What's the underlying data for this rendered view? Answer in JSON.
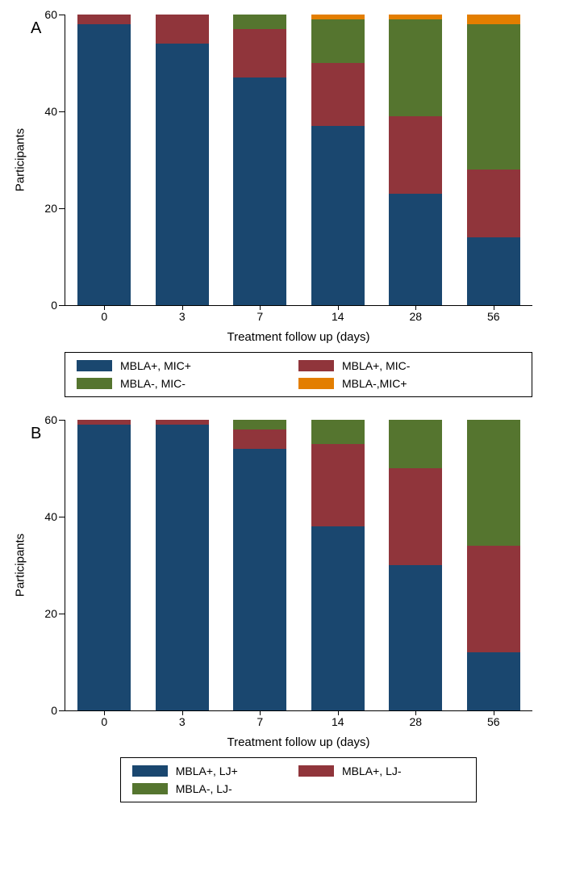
{
  "global": {
    "background_color": "#ffffff",
    "axis_color": "#000000",
    "text_color": "#000000",
    "font_family": "Arial",
    "label_fontsize": 14,
    "axis_title_fontsize": 15,
    "panel_label_fontsize": 20
  },
  "series_colors": {
    "blue": "#1a476f",
    "maroon": "#90353b",
    "green": "#55752f",
    "orange": "#e37e00"
  },
  "panelA": {
    "label": "A",
    "type": "stacked_bar",
    "ylabel": "Participants",
    "xlabel": "Treatment follow up (days)",
    "ylim": [
      0,
      60
    ],
    "ytick_step": 20,
    "yticks": [
      0,
      20,
      40,
      60
    ],
    "bar_width": 0.72,
    "categories": [
      "0",
      "3",
      "7",
      "14",
      "28",
      "56"
    ],
    "stack_order": [
      "MBLA+_MIC+",
      "MBLA+_MIC-",
      "MBLA-_MIC-",
      "MBLA-_MIC+"
    ],
    "series": {
      "MBLA+_MIC+": {
        "label": "MBLA+, MIC+",
        "color": "#1a476f",
        "values": [
          58,
          54,
          47,
          37,
          23,
          14
        ]
      },
      "MBLA+_MIC-": {
        "label": "MBLA+, MIC-",
        "color": "#90353b",
        "values": [
          2,
          6,
          10,
          13,
          16,
          14
        ]
      },
      "MBLA-_MIC-": {
        "label": "MBLA-, MIC-",
        "color": "#55752f",
        "values": [
          0,
          0,
          3,
          9,
          20,
          30
        ]
      },
      "MBLA-_MIC+": {
        "label": "MBLA-,MIC+",
        "color": "#e37e00",
        "values": [
          0,
          0,
          0,
          1,
          1,
          2
        ]
      }
    },
    "legend_layout": [
      [
        "MBLA+_MIC+",
        "MBLA+_MIC-"
      ],
      [
        "MBLA-_MIC-",
        "MBLA-_MIC+"
      ]
    ]
  },
  "panelB": {
    "label": "B",
    "type": "stacked_bar",
    "ylabel": "Participants",
    "xlabel": "Treatment follow up (days)",
    "ylim": [
      0,
      60
    ],
    "ytick_step": 20,
    "yticks": [
      0,
      20,
      40,
      60
    ],
    "bar_width": 0.72,
    "categories": [
      "0",
      "3",
      "7",
      "14",
      "28",
      "56"
    ],
    "stack_order": [
      "MBLA+_LJ+",
      "MBLA+_LJ-",
      "MBLA-_LJ-"
    ],
    "series": {
      "MBLA+_LJ+": {
        "label": "MBLA+, LJ+",
        "color": "#1a476f",
        "values": [
          59,
          59,
          54,
          38,
          30,
          12
        ]
      },
      "MBLA+_LJ-": {
        "label": "MBLA+, LJ-",
        "color": "#90353b",
        "values": [
          1,
          1,
          4,
          17,
          20,
          22
        ]
      },
      "MBLA-_LJ-": {
        "label": "MBLA-, LJ-",
        "color": "#55752f",
        "values": [
          0,
          0,
          2,
          5,
          10,
          26
        ]
      }
    },
    "legend_layout": [
      [
        "MBLA+_LJ+",
        "MBLA+_LJ-"
      ],
      [
        "MBLA-_LJ-"
      ]
    ]
  }
}
